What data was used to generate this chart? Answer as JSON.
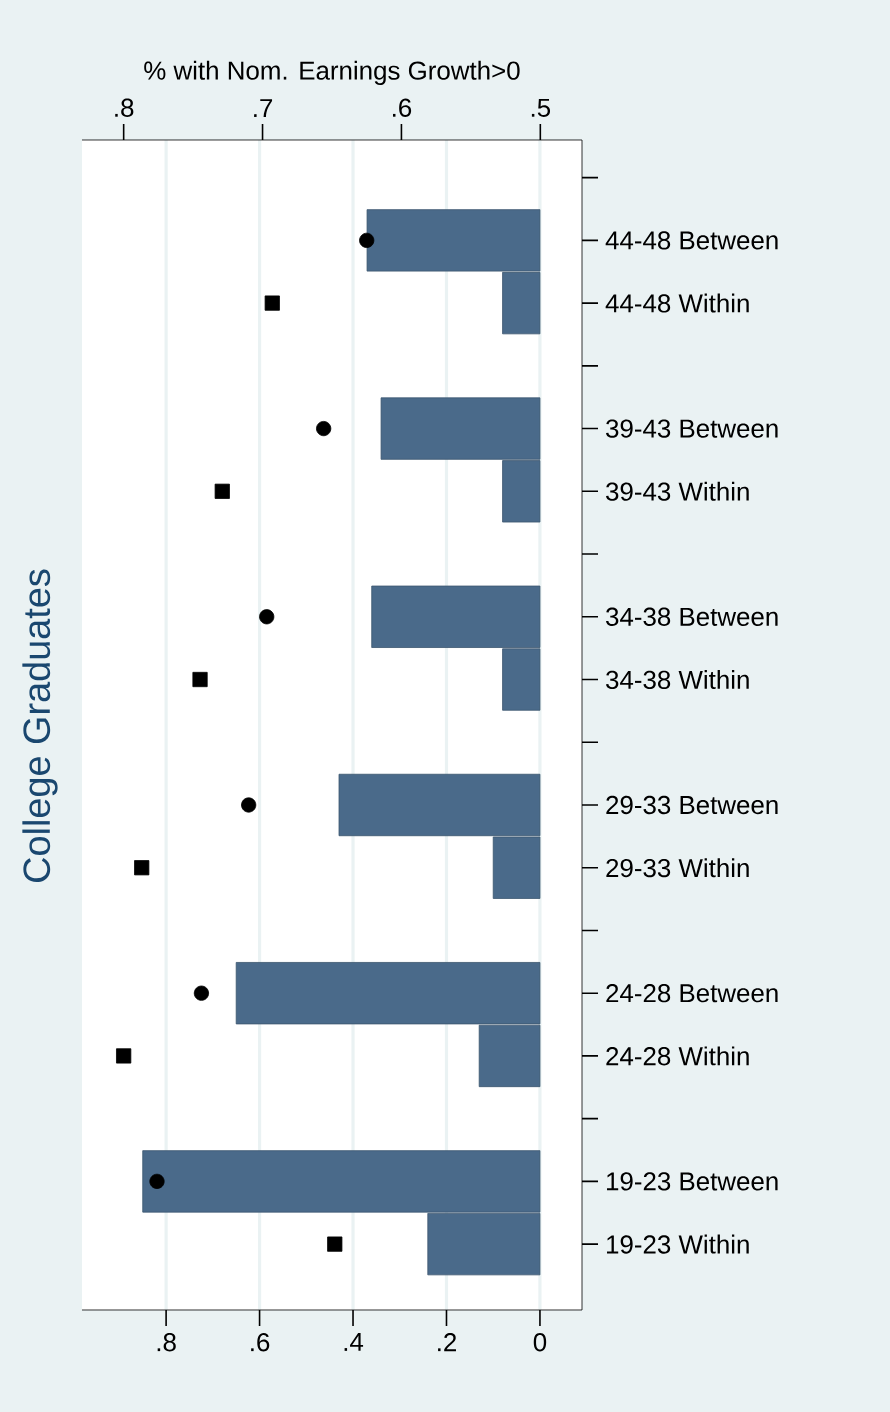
{
  "chart_data": {
    "type": "bar",
    "orientation": "horizontal",
    "title": "College Graduates",
    "x2label": "% with Nom. Earnings Growth>0",
    "categories": [
      null,
      "44-48 Between",
      "44-48 Within",
      null,
      "39-43 Between",
      "39-43 Within",
      null,
      "34-38 Between",
      "34-38 Within",
      null,
      "29-33 Between",
      "29-33 Within",
      null,
      "24-28 Between",
      "24-28 Within",
      null,
      "19-23 Between",
      "19-23 Within"
    ],
    "series": [
      {
        "color": "#4a6a8a",
        "values": [
          null,
          0.37,
          0.08,
          null,
          0.34,
          0.08,
          null,
          0.36,
          0.08,
          null,
          0.43,
          0.1,
          null,
          0.65,
          0.13,
          null,
          0.85,
          0.24
        ]
      },
      {
        "type": "scatter",
        "axis": "x2",
        "marker": "circle",
        "color": "#000000",
        "values": [
          null,
          0.625,
          null,
          null,
          0.656,
          null,
          null,
          0.697,
          null,
          null,
          0.71,
          null,
          null,
          0.744,
          null,
          null,
          0.776,
          null
        ]
      },
      {
        "type": "scatter",
        "axis": "x2",
        "marker": "square",
        "color": "#000000",
        "values": [
          null,
          null,
          0.693,
          null,
          null,
          0.729,
          null,
          null,
          0.745,
          null,
          null,
          0.787,
          null,
          null,
          0.8,
          null,
          null,
          0.648
        ]
      }
    ],
    "xlim": [
      0.98,
      -0.09
    ],
    "xticks": [
      0,
      {
        "value": 0.2,
        "label": ".2"
      },
      {
        "value": 0.4,
        "label": ".4"
      },
      {
        "value": 0.6,
        "label": ".6"
      },
      {
        "value": 0.8,
        "label": ".8"
      }
    ],
    "x2lim": [
      0.83,
      0.47
    ],
    "x2ticks": [
      {
        "value": 0.5,
        "label": ".5"
      },
      {
        "value": 0.6,
        "label": ".6"
      },
      {
        "value": 0.7,
        "label": ".7"
      },
      {
        "value": 0.8,
        "label": ".8"
      }
    ],
    "grid": "x"
  }
}
